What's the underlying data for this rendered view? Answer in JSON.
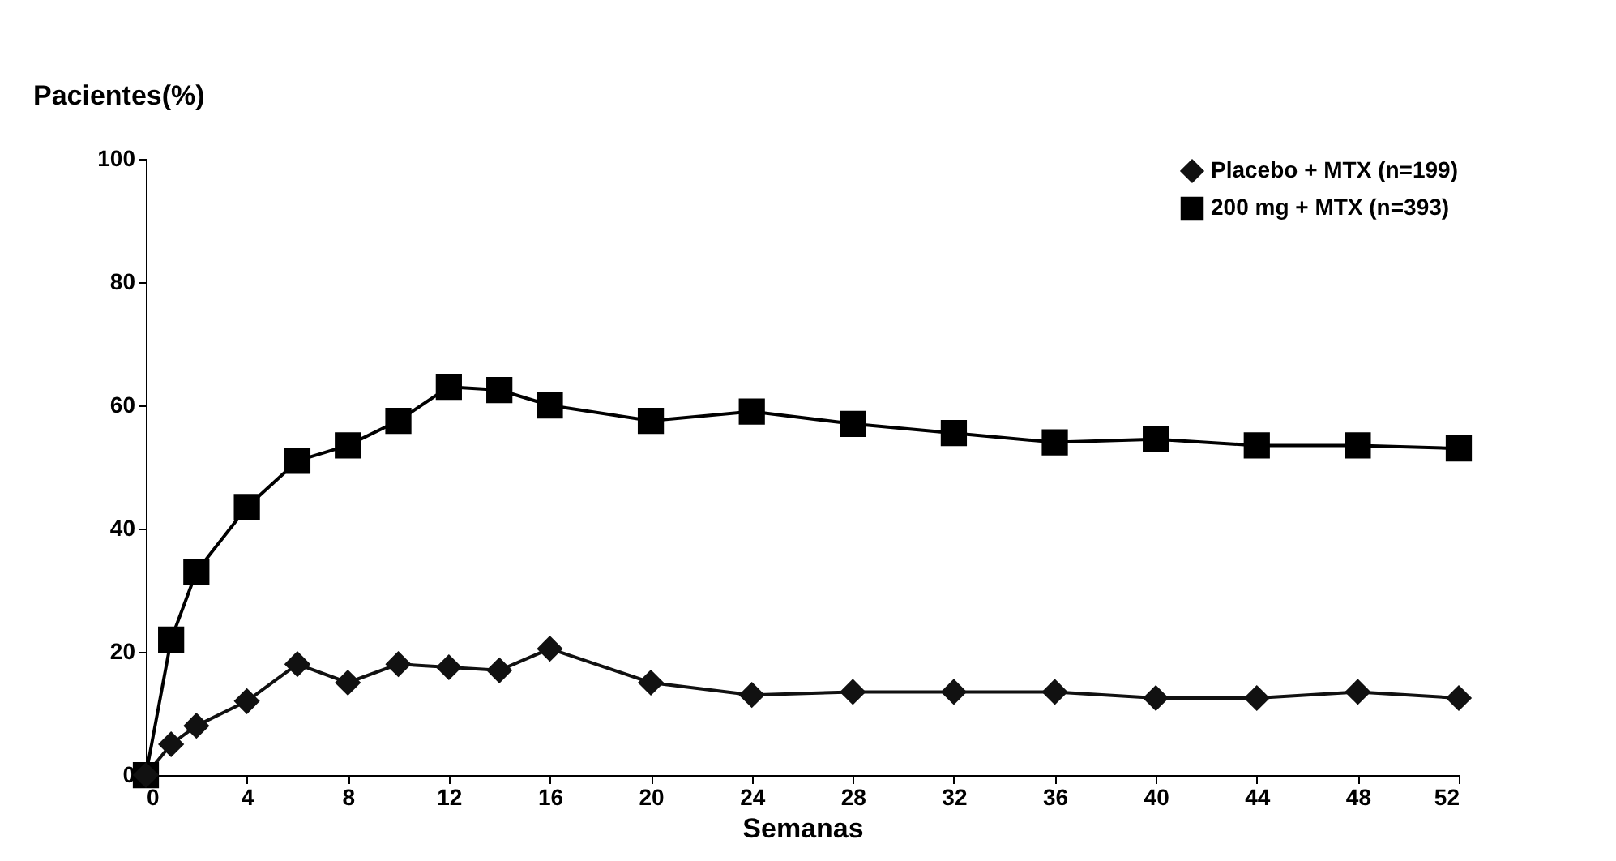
{
  "chart_data": {
    "type": "line",
    "ylabel": "Pacientes(%)",
    "xlabel": "Semanas",
    "x": [
      0,
      1,
      2,
      4,
      6,
      8,
      10,
      12,
      14,
      16,
      20,
      24,
      28,
      32,
      36,
      40,
      44,
      48,
      52
    ],
    "series": [
      {
        "name": "Placebo + MTX (n=199)",
        "color": "#111111",
        "marker": "diamond",
        "values": [
          0,
          5,
          8,
          12,
          18,
          15,
          18,
          17.5,
          17,
          20.5,
          15,
          13,
          13.5,
          13.5,
          13.5,
          12.5,
          12.5,
          13.5,
          12.5
        ]
      },
      {
        "name": "200 mg + MTX (n=393)",
        "color": "#000000",
        "marker": "square",
        "values": [
          0,
          22,
          33,
          43.5,
          51,
          53.5,
          57.5,
          63,
          62.5,
          60,
          57.5,
          59,
          57,
          55.5,
          54,
          54.5,
          53.5,
          53.5,
          53
        ]
      }
    ],
    "xlim": [
      0,
      52
    ],
    "xticks": [
      0,
      4,
      8,
      12,
      16,
      20,
      24,
      28,
      32,
      36,
      40,
      44,
      48,
      52
    ],
    "ylim": [
      0,
      100
    ],
    "yticks": [
      0,
      20,
      40,
      60,
      80,
      100
    ],
    "grid": false,
    "legend": "top right",
    "line_style": "solid"
  }
}
